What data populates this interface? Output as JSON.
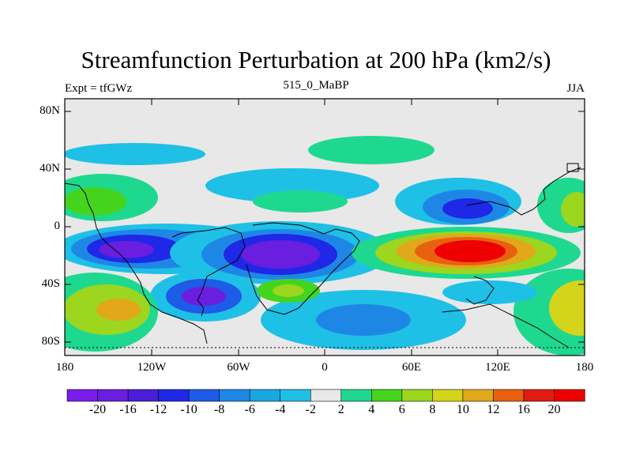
{
  "title": "Streamfunction Perturbation at 200 hPa (km2/s)",
  "subtitle_left": "Expt = tfGWz",
  "subtitle_center": "515_0_MaBP",
  "subtitle_right": "JJA",
  "y_axis_labels": [
    "80N",
    "40N",
    "0",
    "40S",
    "80S"
  ],
  "x_axis_labels": [
    "180",
    "120W",
    "60W",
    "0",
    "60E",
    "120E",
    "180"
  ],
  "colorbar": {
    "labels": [
      "-20",
      "-16",
      "-12",
      "-10",
      "-8",
      "-6",
      "-4",
      "-2",
      "2",
      "4",
      "6",
      "8",
      "10",
      "12",
      "16",
      "20"
    ],
    "colors": [
      "#7a1de8",
      "#6a1ee0",
      "#4a1ed8",
      "#1e28e6",
      "#1e5be6",
      "#1e87e6",
      "#1aa7e0",
      "#1ec0e6",
      "#e8e8e8",
      "#1ed890",
      "#44d41e",
      "#9cd61e",
      "#d4d41a",
      "#e0a81a",
      "#e86010",
      "#e01c14",
      "#ee0000"
    ]
  },
  "colors": {
    "land_outline": "#000000",
    "background": "#ffffff",
    "map_fill": "#e8e8e8"
  }
}
